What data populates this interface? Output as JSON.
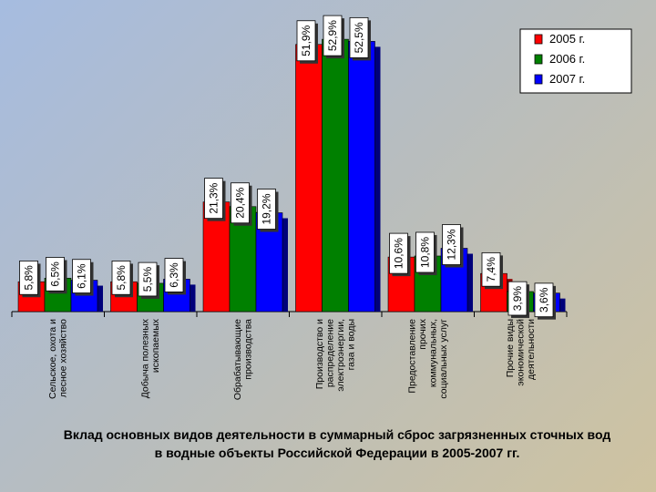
{
  "chart_data": {
    "type": "bar",
    "title_line1": "Вклад основных видов деятельности в суммарный сброс загрязненных сточных вод",
    "title_line2": "в водные объекты Российской Федерации в 2005-2007 гг.",
    "categories": [
      [
        "Сельское, охота и",
        "лесное хозяйство"
      ],
      [
        "Добыча полезных",
        "ископаемых"
      ],
      [
        "Обрабатывающие",
        "производства"
      ],
      [
        "Производство и",
        "распределение",
        "электроэнергии,",
        "газа и воды"
      ],
      [
        "Предоставление",
        "прочих",
        "коммунальных,",
        "социальных услуг"
      ],
      [
        "Прочие виды",
        "экономической",
        "деятельности"
      ]
    ],
    "series": [
      {
        "name": "2005 г.",
        "color": "#ff0000",
        "side": "#8a0000",
        "values": [
          5.8,
          5.8,
          21.3,
          51.9,
          10.6,
          7.4
        ],
        "labels": [
          "5,8%",
          "5,8%",
          "21,3%",
          "51,9%",
          "10,6%",
          "7,4%"
        ]
      },
      {
        "name": "2006 г.",
        "color": "#008000",
        "side": "#004000",
        "values": [
          6.5,
          5.5,
          20.4,
          52.9,
          10.8,
          3.9
        ],
        "labels": [
          "6,5%",
          "5,5%",
          "20,4%",
          "52,9%",
          "10,8%",
          "3,9%"
        ]
      },
      {
        "name": "2007 г.",
        "color": "#0000ff",
        "side": "#00007a",
        "values": [
          6.1,
          6.3,
          19.2,
          52.5,
          12.3,
          3.6
        ],
        "labels": [
          "6,1%",
          "6,3%",
          "19,2%",
          "52,5%",
          "12,3%",
          "3,6%"
        ]
      }
    ],
    "ylim": [
      0,
      60
    ],
    "legend_position": "top-right",
    "grid": false
  }
}
